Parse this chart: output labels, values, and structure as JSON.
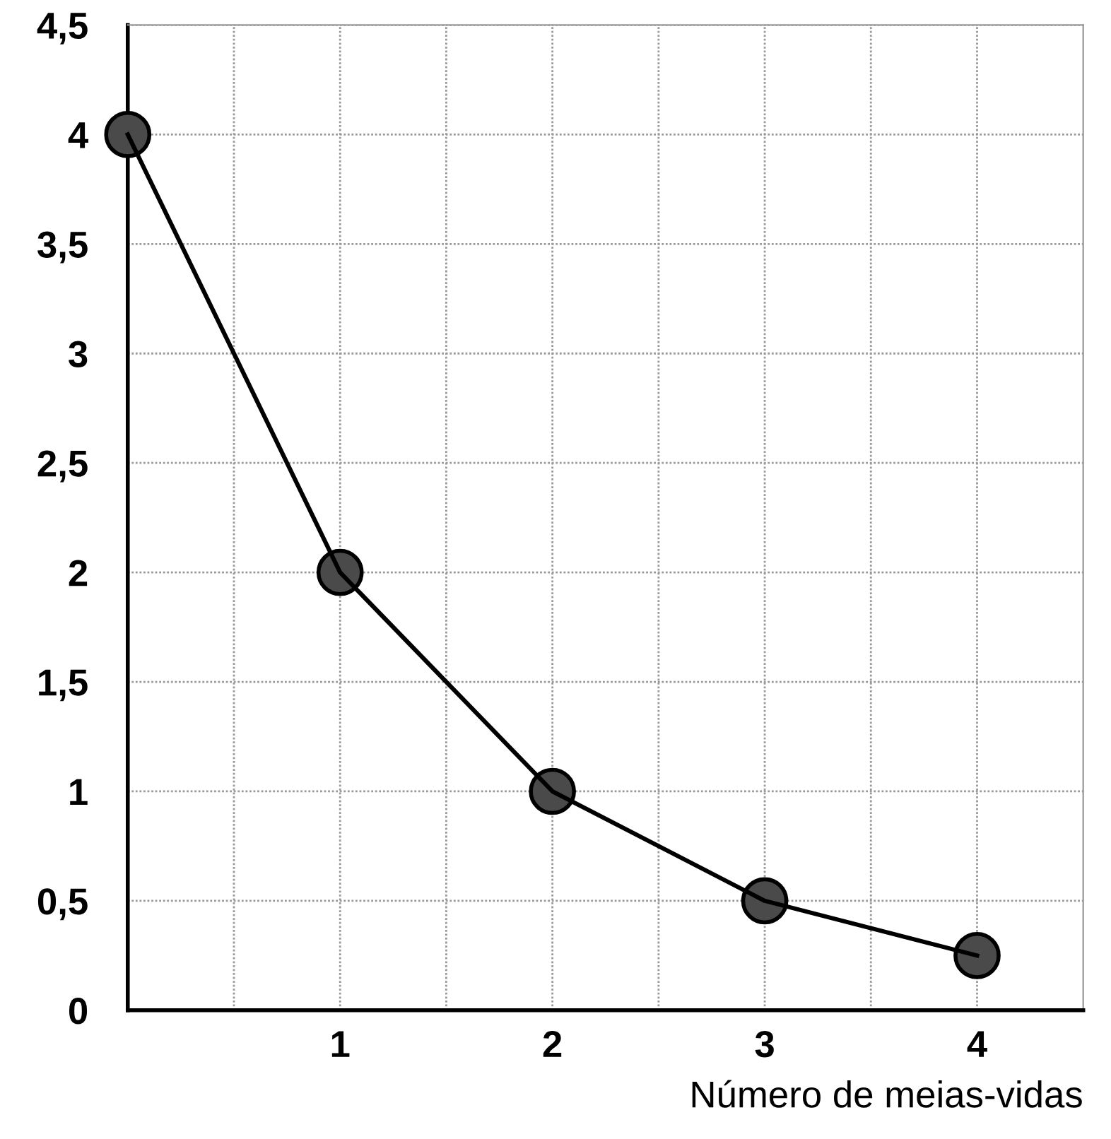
{
  "chart_data": {
    "type": "line",
    "xlabel": "Número de meias-vidas",
    "x": [
      0,
      1,
      2,
      3,
      4
    ],
    "series": [
      {
        "color": "#000000",
        "values": [
          4,
          2,
          1,
          0.5,
          0.25
        ]
      }
    ],
    "marker": "circle",
    "line_style": "solid",
    "grid": true,
    "xlim": [
      0,
      4.5
    ],
    "ylim": [
      0,
      4.5
    ],
    "xticks": [
      {
        "value": 0.5,
        "label": null
      },
      1,
      {
        "value": 1.5,
        "label": null
      },
      2,
      {
        "value": 2.5,
        "label": null
      },
      3,
      {
        "value": 3.5,
        "label": null
      },
      4
    ],
    "yticks": [
      0,
      {
        "value": 0.5,
        "label": "0,5"
      },
      1,
      {
        "value": 1.5,
        "label": "1,5"
      },
      2,
      {
        "value": 2.5,
        "label": "2,5"
      },
      3,
      {
        "value": 3.5,
        "label": "3,5"
      },
      4,
      {
        "value": 4.5,
        "label": "4,5"
      }
    ]
  }
}
